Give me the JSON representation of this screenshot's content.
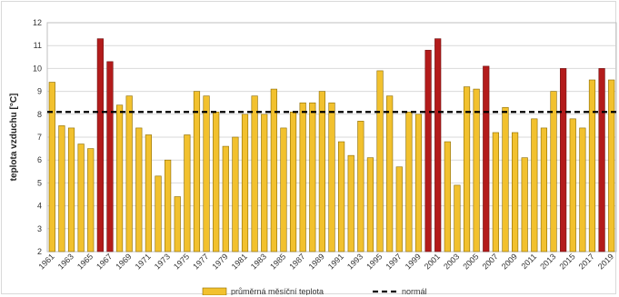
{
  "chart_data": {
    "type": "bar",
    "ylabel": "teplota vzduchu [°C]",
    "ylim": [
      2,
      12
    ],
    "yticks": [
      2,
      3,
      4,
      5,
      6,
      7,
      8,
      9,
      10,
      11,
      12
    ],
    "grid": true,
    "legend_position": "bottom",
    "x_tick_labels": [
      "1961",
      "1963",
      "1965",
      "1967",
      "1969",
      "1971",
      "1973",
      "1975",
      "1977",
      "1979",
      "1981",
      "1983",
      "1985",
      "1987",
      "1989",
      "1991",
      "1993",
      "1995",
      "1997",
      "1999",
      "2001",
      "2003",
      "2005",
      "2007",
      "2009",
      "2011",
      "2013",
      "2015",
      "2017",
      "2019"
    ],
    "categories": [
      1961,
      1962,
      1963,
      1964,
      1965,
      1966,
      1967,
      1968,
      1969,
      1970,
      1971,
      1972,
      1973,
      1974,
      1975,
      1976,
      1977,
      1978,
      1979,
      1980,
      1981,
      1982,
      1983,
      1984,
      1985,
      1986,
      1987,
      1988,
      1989,
      1990,
      1991,
      1992,
      1993,
      1994,
      1995,
      1996,
      1997,
      1998,
      1999,
      2000,
      2001,
      2002,
      2003,
      2004,
      2005,
      2006,
      2007,
      2008,
      2009,
      2010,
      2011,
      2012,
      2013,
      2014,
      2015,
      2016,
      2017,
      2018,
      2019
    ],
    "values": [
      9.4,
      7.5,
      7.4,
      6.7,
      6.5,
      11.3,
      10.3,
      8.4,
      8.8,
      7.4,
      7.1,
      5.3,
      6.0,
      4.4,
      7.1,
      9.0,
      8.8,
      8.1,
      6.6,
      7.0,
      8.0,
      8.8,
      8.0,
      9.1,
      7.4,
      8.1,
      8.5,
      8.5,
      9.0,
      8.5,
      6.8,
      6.2,
      7.7,
      6.1,
      9.9,
      8.8,
      5.7,
      8.1,
      8.0,
      10.8,
      11.3,
      6.8,
      4.9,
      9.2,
      9.1,
      10.1,
      7.2,
      8.3,
      7.2,
      6.1,
      7.8,
      7.4,
      9.0,
      10.0,
      7.8,
      7.4,
      9.5,
      10.0,
      9.5
    ],
    "highlighted": [
      false,
      false,
      false,
      false,
      false,
      true,
      true,
      false,
      false,
      false,
      false,
      false,
      false,
      false,
      false,
      false,
      false,
      false,
      false,
      false,
      false,
      false,
      false,
      false,
      false,
      false,
      false,
      false,
      false,
      false,
      false,
      false,
      false,
      false,
      false,
      false,
      false,
      false,
      false,
      true,
      true,
      false,
      false,
      false,
      false,
      true,
      false,
      false,
      false,
      false,
      false,
      false,
      false,
      true,
      false,
      false,
      false,
      true,
      false
    ],
    "normal": 8.1,
    "colors": {
      "bar": "#f2c12e",
      "bar_stroke": "#8a6a00",
      "bar_highlight": "#b31b1b",
      "bar_highlight_stroke": "#6e0f0f",
      "normal_line": "#000000",
      "grid": "#d9d9d9"
    },
    "legend": [
      {
        "label": "průměrná měsíční teplota",
        "kind": "bar"
      },
      {
        "label": "normál",
        "kind": "dashed-line"
      }
    ]
  }
}
